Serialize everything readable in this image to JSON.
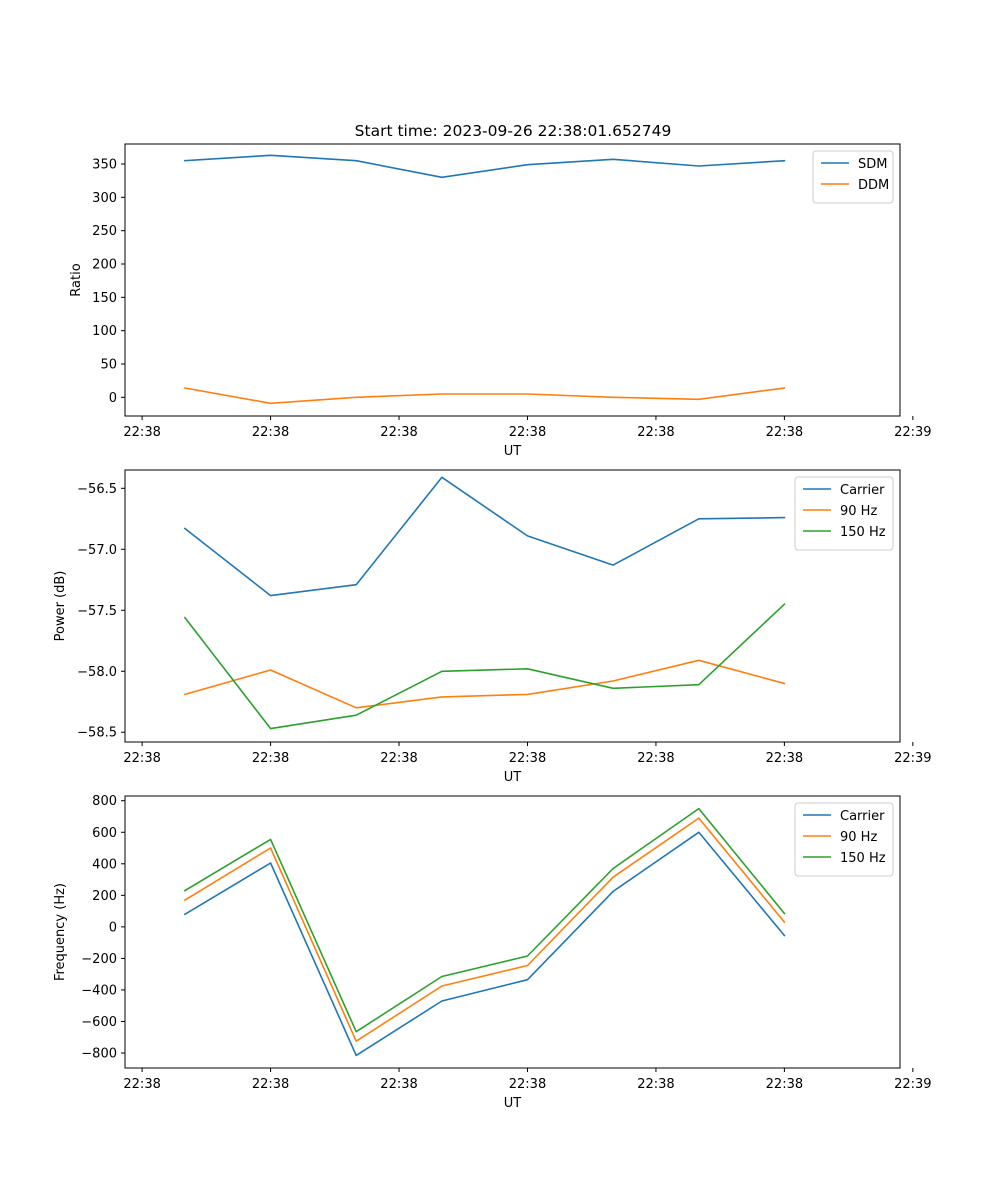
{
  "figure_title": "Start time: 2023-09-26 22:38:01.652749",
  "colors": {
    "blue": "#1f77b4",
    "orange": "#ff7f0e",
    "green": "#2ca02c"
  },
  "chart_data": [
    {
      "type": "line",
      "title": "Start time: 2023-09-26 22:38:01.652749",
      "xlabel": "UT",
      "ylabel": "Ratio",
      "x": [
        1,
        2,
        3,
        4,
        5,
        6,
        7,
        8
      ],
      "xlim": [
        0.3,
        9.35
      ],
      "xticks": [
        0.5,
        2,
        3.5,
        5,
        6.5,
        8,
        9.5
      ],
      "xticklabels": [
        "22:38",
        "22:38",
        "22:38",
        "22:38",
        "22:38",
        "22:38",
        "22:39"
      ],
      "ylim": [
        -28,
        380
      ],
      "yticks": [
        0,
        50,
        100,
        150,
        200,
        250,
        300,
        350
      ],
      "yticklabels": [
        "0",
        "50",
        "100",
        "150",
        "200",
        "250",
        "300",
        "350"
      ],
      "legend": "top-right",
      "series": [
        {
          "name": "SDM",
          "color": "blue",
          "values": [
            355,
            363,
            355,
            330,
            349,
            357,
            347,
            355
          ]
        },
        {
          "name": "DDM",
          "color": "orange",
          "values": [
            14,
            -9,
            0,
            5,
            5,
            0,
            -3,
            14
          ]
        }
      ]
    },
    {
      "type": "line",
      "title": "",
      "xlabel": "UT",
      "ylabel": "Power (dB)",
      "x": [
        1,
        2,
        3,
        4,
        5,
        6,
        7,
        8
      ],
      "xlim": [
        0.3,
        9.35
      ],
      "xticks": [
        0.5,
        2,
        3.5,
        5,
        6.5,
        8,
        9.5
      ],
      "xticklabels": [
        "22:38",
        "22:38",
        "22:38",
        "22:38",
        "22:38",
        "22:38",
        "22:39"
      ],
      "ylim": [
        -58.58,
        -56.35
      ],
      "yticks": [
        -58.5,
        -58.0,
        -57.5,
        -57.0,
        -56.5
      ],
      "yticklabels": [
        "−58.5",
        "−58.0",
        "−57.5",
        "−57.0",
        "−56.5"
      ],
      "legend": "top-right",
      "series": [
        {
          "name": "Carrier",
          "color": "blue",
          "values": [
            -56.83,
            -57.38,
            -57.29,
            -56.41,
            -56.89,
            -57.13,
            -56.75,
            -56.74
          ]
        },
        {
          "name": "90 Hz",
          "color": "orange",
          "values": [
            -58.19,
            -57.99,
            -58.3,
            -58.21,
            -58.19,
            -58.08,
            -57.91,
            -58.1
          ]
        },
        {
          "name": "150 Hz",
          "color": "green",
          "values": [
            -57.56,
            -58.47,
            -58.36,
            -58.0,
            -57.98,
            -58.14,
            -58.11,
            -57.45
          ]
        }
      ]
    },
    {
      "type": "line",
      "title": "",
      "xlabel": "UT",
      "ylabel": "Frequency (Hz)",
      "x": [
        1,
        2,
        3,
        4,
        5,
        6,
        7,
        8
      ],
      "xlim": [
        0.3,
        9.35
      ],
      "xticks": [
        0.5,
        2,
        3.5,
        5,
        6.5,
        8,
        9.5
      ],
      "xticklabels": [
        "22:38",
        "22:38",
        "22:38",
        "22:38",
        "22:38",
        "22:38",
        "22:39"
      ],
      "ylim": [
        -895,
        830
      ],
      "yticks": [
        -800,
        -600,
        -400,
        -200,
        0,
        200,
        400,
        600,
        800
      ],
      "yticklabels": [
        "−800",
        "−600",
        "−400",
        "−200",
        "0",
        "200",
        "400",
        "600",
        "800"
      ],
      "legend": "top-right",
      "series": [
        {
          "name": "Carrier",
          "color": "blue",
          "values": [
            80,
            405,
            -815,
            -470,
            -335,
            225,
            600,
            -55
          ]
        },
        {
          "name": "90 Hz",
          "color": "orange",
          "values": [
            170,
            500,
            -725,
            -375,
            -245,
            315,
            690,
            30
          ]
        },
        {
          "name": "150 Hz",
          "color": "green",
          "values": [
            230,
            555,
            -665,
            -315,
            -185,
            370,
            750,
            85
          ]
        }
      ]
    }
  ]
}
